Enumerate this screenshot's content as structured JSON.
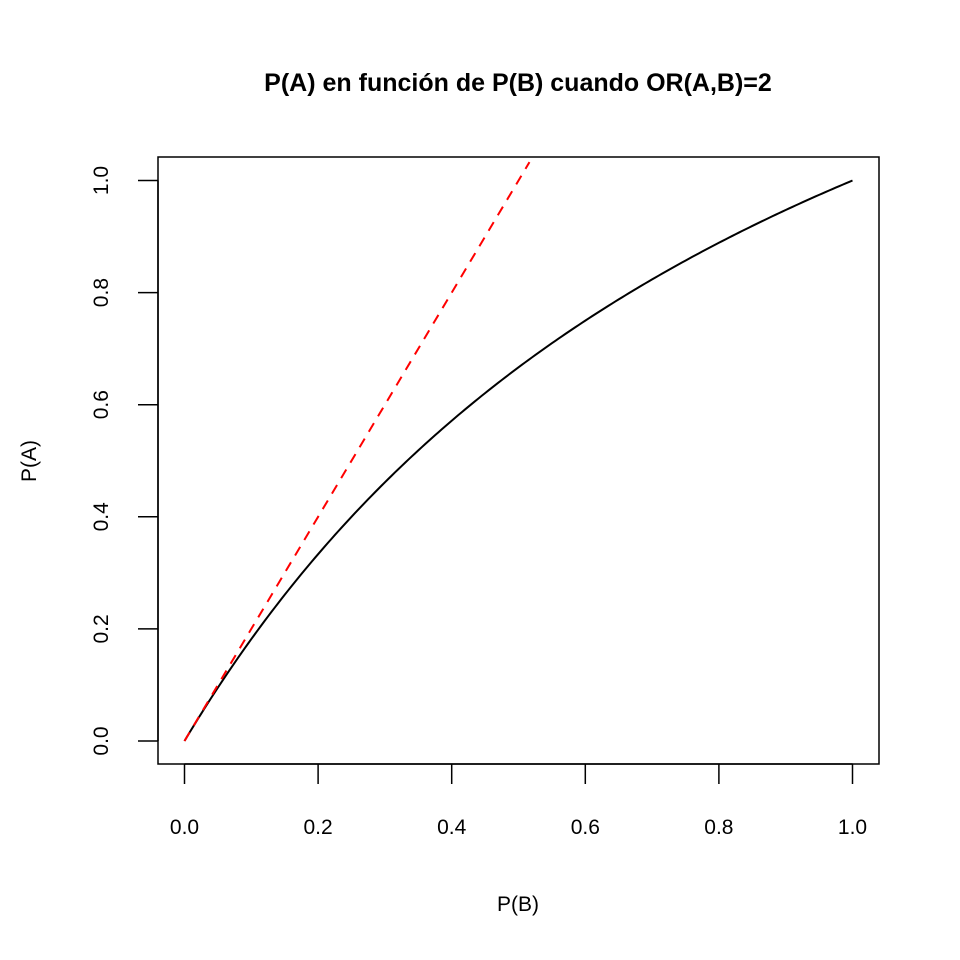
{
  "chart_data": {
    "type": "line",
    "title": "P(A) en función de P(B) cuando OR(A,B)=2",
    "xlabel": "P(B)",
    "ylabel": "P(A)",
    "xlim": [
      0.0,
      1.0
    ],
    "ylim": [
      0.0,
      1.0
    ],
    "xticks": [
      "0.0",
      "0.2",
      "0.4",
      "0.6",
      "0.8",
      "1.0"
    ],
    "yticks": [
      "0.0",
      "0.2",
      "0.4",
      "0.6",
      "0.8",
      "1.0"
    ],
    "grid": false,
    "legend": "none",
    "series": [
      {
        "style": "solid",
        "color": "#000000",
        "x": [
          0.0,
          0.05,
          0.1,
          0.15,
          0.2,
          0.25,
          0.3,
          0.35,
          0.4,
          0.45,
          0.5,
          0.55,
          0.6,
          0.65,
          0.7,
          0.75,
          0.8,
          0.85,
          0.9,
          0.95,
          1.0
        ],
        "y": [
          0.0,
          0.0952,
          0.1818,
          0.2609,
          0.3333,
          0.4,
          0.4615,
          0.5185,
          0.5714,
          0.6207,
          0.6667,
          0.7097,
          0.75,
          0.7879,
          0.8235,
          0.8571,
          0.8889,
          0.9189,
          0.9474,
          0.9744,
          1.0
        ]
      },
      {
        "style": "dashed",
        "color": "#ff0000",
        "x": [
          0.0,
          0.5164
        ],
        "y": [
          0.0,
          1.0327
        ]
      }
    ]
  }
}
